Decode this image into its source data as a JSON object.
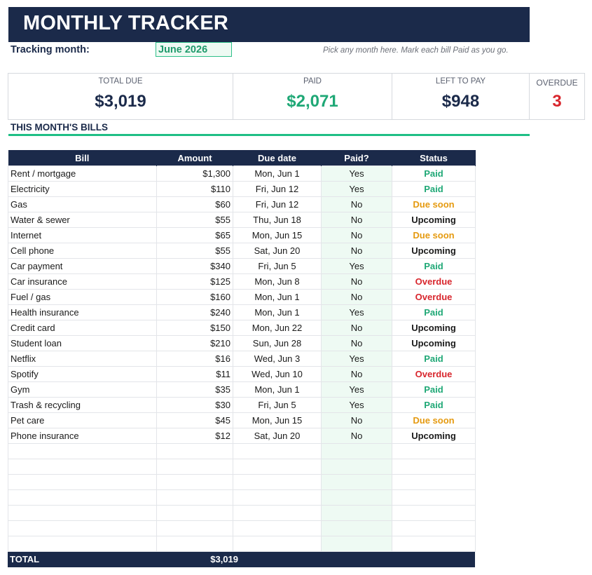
{
  "header": {
    "title": "MONTHLY TRACKER"
  },
  "month": {
    "label": "Tracking month:",
    "value": "June 2026",
    "hint": "Pick any month here. Mark each bill Paid as you go."
  },
  "kpis": {
    "total_due": {
      "label": "TOTAL DUE",
      "value": "$3,019"
    },
    "paid": {
      "label": "PAID",
      "value": "$2,071"
    },
    "left_to_pay": {
      "label": "LEFT TO PAY",
      "value": "$948"
    },
    "overdue": {
      "label": "OVERDUE",
      "value": "3"
    }
  },
  "colors": {
    "navy": "#1b2a4a",
    "green": "#1fa876",
    "orange": "#e59a10",
    "red": "#d8262d"
  },
  "section_title": "THIS MONTH'S BILLS",
  "table": {
    "columns": [
      "Bill",
      "Amount",
      "Due date",
      "Paid?",
      "Status"
    ],
    "rows": [
      [
        "Rent / mortgage",
        "$1,300",
        "Mon, Jun 1",
        "Yes",
        "Paid"
      ],
      [
        "Electricity",
        "$110",
        "Fri, Jun 12",
        "Yes",
        "Paid"
      ],
      [
        "Gas",
        "$60",
        "Fri, Jun 12",
        "No",
        "Due soon"
      ],
      [
        "Water & sewer",
        "$55",
        "Thu, Jun 18",
        "No",
        "Upcoming"
      ],
      [
        "Internet",
        "$65",
        "Mon, Jun 15",
        "No",
        "Due soon"
      ],
      [
        "Cell phone",
        "$55",
        "Sat, Jun 20",
        "No",
        "Upcoming"
      ],
      [
        "Car payment",
        "$340",
        "Fri, Jun 5",
        "Yes",
        "Paid"
      ],
      [
        "Car insurance",
        "$125",
        "Mon, Jun 8",
        "No",
        "Overdue"
      ],
      [
        "Fuel / gas",
        "$160",
        "Mon, Jun 1",
        "No",
        "Overdue"
      ],
      [
        "Health insurance",
        "$240",
        "Mon, Jun 1",
        "Yes",
        "Paid"
      ],
      [
        "Credit card",
        "$150",
        "Mon, Jun 22",
        "No",
        "Upcoming"
      ],
      [
        "Student loan",
        "$210",
        "Sun, Jun 28",
        "No",
        "Upcoming"
      ],
      [
        "Netflix",
        "$16",
        "Wed, Jun 3",
        "Yes",
        "Paid"
      ],
      [
        "Spotify",
        "$11",
        "Wed, Jun 10",
        "No",
        "Overdue"
      ],
      [
        "Gym",
        "$35",
        "Mon, Jun 1",
        "Yes",
        "Paid"
      ],
      [
        "Trash & recycling",
        "$30",
        "Fri, Jun 5",
        "Yes",
        "Paid"
      ],
      [
        "Pet care",
        "$45",
        "Mon, Jun 15",
        "No",
        "Due soon"
      ],
      [
        "Phone insurance",
        "$12",
        "Sat, Jun 20",
        "No",
        "Upcoming"
      ]
    ],
    "blank_rows": 7
  },
  "total": {
    "label": "TOTAL",
    "value": "$3,019"
  }
}
